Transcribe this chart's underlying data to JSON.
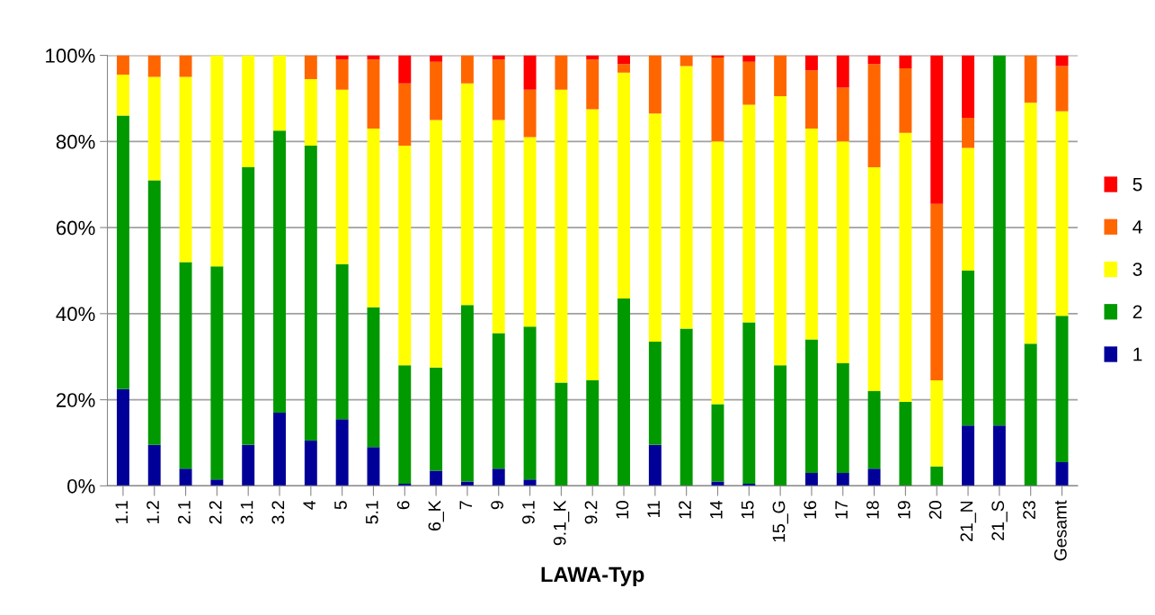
{
  "chart_data": {
    "type": "bar",
    "stacked": true,
    "xlabel": "LAWA-Typ",
    "categories": [
      "1.1",
      "1.2",
      "2.1",
      "2.2",
      "3.1",
      "3.2",
      "4",
      "5",
      "5.1",
      "6",
      "6_K",
      "7",
      "9",
      "9.1",
      "9.1_K",
      "9.2",
      "10",
      "11",
      "12",
      "14",
      "15",
      "15_G",
      "16",
      "17",
      "18",
      "19",
      "20",
      "21_N",
      "21_S",
      "23",
      "Gesamt"
    ],
    "series": [
      {
        "name": "1",
        "color": "#000099",
        "values": [
          22.5,
          9.5,
          4,
          1.5,
          9.5,
          17,
          10.5,
          15.5,
          9,
          0.5,
          3.5,
          1,
          4,
          1.5,
          0,
          0,
          0,
          9.5,
          0,
          1,
          0.5,
          0,
          3,
          3,
          4,
          0,
          0,
          14,
          14,
          0,
          5.5
        ]
      },
      {
        "name": "2",
        "color": "#009900",
        "values": [
          63.5,
          61.5,
          48,
          49.5,
          64.5,
          65.5,
          68.5,
          36,
          32.5,
          27.5,
          24,
          41,
          31.5,
          35.5,
          24,
          24.5,
          43.5,
          24,
          36.5,
          18,
          37.5,
          28,
          31,
          25.5,
          18,
          19.5,
          4.5,
          36,
          86,
          33,
          34
        ]
      },
      {
        "name": "3",
        "color": "#ffff00",
        "values": [
          9.5,
          24,
          43,
          49,
          26,
          17.5,
          15.5,
          40.5,
          41.5,
          51,
          57.5,
          51.5,
          49.5,
          44,
          68,
          63,
          52.5,
          53,
          61,
          61,
          50.5,
          62.5,
          49,
          51.5,
          52,
          62.5,
          20,
          28.5,
          0,
          56,
          47.5
        ]
      },
      {
        "name": "4",
        "color": "#ff6600",
        "values": [
          4.5,
          5,
          5,
          0,
          0,
          0,
          5.5,
          7,
          16,
          14.5,
          13.5,
          6.5,
          14,
          11,
          8,
          11.5,
          2,
          13.5,
          2.5,
          19.5,
          10,
          9.5,
          13.5,
          12.5,
          24,
          15,
          41,
          7,
          0,
          11,
          10.5
        ]
      },
      {
        "name": "5",
        "color": "#ff0000",
        "values": [
          0,
          0,
          0,
          0,
          0,
          0,
          0,
          1,
          1,
          6.5,
          1.5,
          0,
          1,
          8,
          0,
          1,
          2,
          0,
          0,
          0.5,
          1.5,
          0,
          3.5,
          7.5,
          2,
          3,
          34.5,
          14.5,
          0,
          0,
          2.5
        ]
      }
    ],
    "ylim": [
      0,
      100
    ],
    "yticks": [
      {
        "value": 0,
        "label": "0%"
      },
      {
        "value": 20,
        "label": "20%"
      },
      {
        "value": 40,
        "label": "40%"
      },
      {
        "value": 60,
        "label": "60%"
      },
      {
        "value": 80,
        "label": "80%"
      },
      {
        "value": 100,
        "label": "100%"
      }
    ],
    "grid": "y",
    "legend": "right"
  }
}
